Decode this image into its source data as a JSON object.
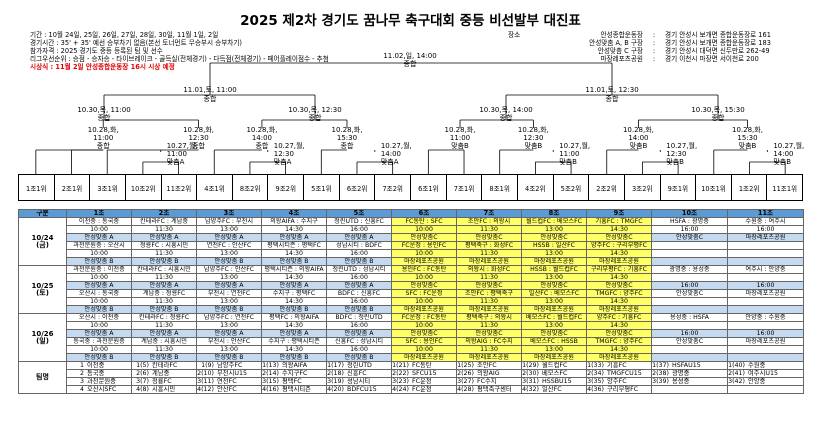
{
  "title": "2025 제2차 경기도 꿈나무 축구대회 중등 비선발부 대진표",
  "info": {
    "period": "기간 : 10월 24일, 25일, 26일, 27일, 28일, 30일, 11월 1일, 2일",
    "match_time": "경기시간 : 35' + 35' 예선 승부차기 없음(본선 토너먼트 무승부시 승부차기)",
    "participants": "참가자격 : 2025 경기도 중등 등록된 팀 및 선수",
    "ranking": "리그우선순위 : 승점 - 승자승 - 타이브레이크 - 골득실(전체경기) - 다득점(전체경기) - 페어플레이점수 - 추첨",
    "awards": "시상식 :    11월 2일 안성종합운동장 16시 시상 예정"
  },
  "venues": {
    "label": "장소",
    "rows": [
      {
        "name": "안성종합운동장",
        "addr": "경기 안성시 보개면 종합운동장로 161"
      },
      {
        "name": "안성맞춤 A, B 구장",
        "addr": "경기 안성시 보개면 종합운동장로 183"
      },
      {
        "name": "안성맞춤 C 구장",
        "addr": "경기 안성시 대덕면 신두만로 262-49"
      },
      {
        "name": "마장레포츠공원",
        "addr": "경기 이천시 마장면 서이천로 200"
      }
    ]
  },
  "bracket": {
    "final": [
      "11.02,일, 14:00",
      "종합"
    ],
    "semis": [
      [
        "11.01,토, 11:00",
        "종합"
      ],
      [
        "11.01,토, 12:30",
        "종합"
      ]
    ],
    "quarters": [
      [
        "10.30,목, 11:00",
        "종합"
      ],
      [
        "10.30,목, 12:30",
        "종합"
      ],
      [
        "10.30,목, 14:00",
        "종합"
      ],
      [
        "10.30,목, 15:30",
        "종합"
      ]
    ],
    "r16": [
      [
        "10.28,화,",
        "11:00",
        "종합"
      ],
      [
        "10.28,화,",
        "12:30",
        "종합"
      ],
      [
        "10.28,화,",
        "14:00",
        "종합"
      ],
      [
        "10.28,화,",
        "15:30",
        "종합"
      ],
      [
        "10.28,화,",
        "11:00",
        "맞춤B"
      ],
      [
        "10.28,화,",
        "12:30",
        "맞춤B"
      ],
      [
        "10.28,화,",
        "14:00",
        "맞춤B"
      ],
      [
        "10.28,화,",
        "15:30",
        "맞춤B"
      ]
    ],
    "r32": [
      [
        "10.27,월,",
        "11:00",
        "맞춤A"
      ],
      [
        "10.27,월,",
        "12:30",
        "맞춤A"
      ],
      [
        "10.27,월,",
        "14:00",
        "맞춤A"
      ],
      [
        "10.27,월,",
        "11:00",
        "맞춤B"
      ],
      [
        "10.27,월,",
        "12:30",
        "맞춤B"
      ],
      [
        "10.27,월,",
        "14:00",
        "맞춤B"
      ]
    ]
  },
  "seeds": [
    "1조1위",
    "2조1위",
    "3조1위",
    "10조2위",
    "11조2위",
    "4조1위",
    "8조2위",
    "9조2위",
    "5조1위",
    "6조2위",
    "7조2위",
    "6조1위",
    "7조1위",
    "8조1위",
    "4조2위",
    "5조2위",
    "2조2위",
    "3조2위",
    "9조1위",
    "10조1위",
    "1조2위",
    "11조1위"
  ],
  "schedule": {
    "headers": [
      "구분",
      "1조",
      "2조",
      "3조",
      "4조",
      "5조",
      "6조",
      "7조",
      "8조",
      "9조",
      "10조",
      "11조"
    ],
    "days": [
      {
        "date": "10/24",
        "dow": "(금)",
        "rows": [
          [
            "이천중 : 동국중",
            "칸테라FC : 계남중",
            "남양주FC : 부천시",
            "의왕AIFA : 수지구",
            "청린UTD : 신흥FC",
            "FC동탄 : SFC",
            "조안FC : 의왕시",
            "월드컵FC : 베모스FC",
            "기흥FC : TMGFC",
            "HSFA : 광명중",
            "수원중 : 여주시"
          ],
          [
            "10:00",
            "11:30",
            "13:00",
            "14:30",
            "16:00",
            "10:00",
            "11:30",
            "13:00",
            "14:30",
            "16:00",
            "16:00"
          ],
          [
            "안성맞춤 A",
            "안성맞춤 A",
            "안성맞춤 A",
            "안성맞춤 A",
            "안성맞춤 A",
            "안성맞춤C",
            "안성맞춤C",
            "안성맞춤C",
            "안성맞춤C",
            "안성맞춤C",
            "마장레포츠공원"
          ],
          [
            "과천문원중 : 오산시",
            "청룡FC : 시흥시민",
            "연천FC : 안산FC",
            "평택시티즌 : 평택FC",
            "성남시티 : BDFC",
            "FC운정 : 용인FC",
            "평택축구 : 화성FC",
            "HSSB : 일산FC",
            "양주FC : 구리부평FC",
            "",
            ""
          ],
          [
            "10:00",
            "11:30",
            "13:00",
            "14:30",
            "16:00",
            "10:00",
            "11:30",
            "13:00",
            "14:30",
            "",
            ""
          ],
          [
            "안성맞춤 B",
            "안성맞춤 B",
            "안성맞춤 B",
            "안성맞춤 B",
            "안성맞춤 B",
            "마장레포츠공원",
            "마장레포츠공원",
            "마장레포츠공원",
            "마장레포츠공원",
            "",
            ""
          ]
        ]
      },
      {
        "date": "10/25",
        "dow": "(토)",
        "rows": [
          [
            "과천문원중 : 이천중",
            "칸테라FC : 시흥시민",
            "남양주FC : 안산FC",
            "평택시티즌 : 의왕AIFA",
            "청린UTD : 성남시티",
            "용인FC : FC동탄",
            "의왕시 : 화성FC",
            "HSSB : 월드컵FC",
            "구리부평FC : 기흥FC",
            "광명중 : 용성중",
            "여주시 : 안양중"
          ],
          [
            "10:00",
            "11:30",
            "13:00",
            "14:30",
            "16:00",
            "10:00",
            "11:30",
            "13:00",
            "14:30",
            "",
            ""
          ],
          [
            "안성맞춤 A",
            "안성맞춤 A",
            "안성맞춤 A",
            "안성맞춤 A",
            "안성맞춤 A",
            "안성맞춤C",
            "안성맞춤C",
            "안성맞춤C",
            "안성맞춤C",
            "16:00",
            "16:00"
          ],
          [
            "오산시 : 동국중",
            "계남중 : 청룡FC",
            "부천시 : 연천FC",
            "수지구 : 평택FC",
            "BDFC : 신흥FC",
            "SFC : FC운정",
            "조안FC : 평택축구",
            "일산FC : 베모스FC",
            "TMGFC : 양주FC",
            "안성맞춤C",
            "마장레포츠공원"
          ],
          [
            "10:00",
            "11:30",
            "13:00",
            "14:30",
            "16:00",
            "10:00",
            "11:30",
            "13:00",
            "14:30",
            "",
            ""
          ],
          [
            "안성맞춤 B",
            "안성맞춤 B",
            "안성맞춤 B",
            "안성맞춤 B",
            "안성맞춤 B",
            "마장레포츠공원",
            "마장레포츠공원",
            "마장레포츠공원",
            "마장레포츠공원",
            "",
            ""
          ]
        ]
      },
      {
        "date": "10/26",
        "dow": "(일)",
        "rows": [
          [
            "오산시 : 이천중",
            "칸테라FC : 청룡FC",
            "남양주FC : 연천FC",
            "평택FC : 의왕AIFA",
            "BDFC : 청린UTD",
            "FC운정 : FC동탄",
            "평택축구 : 의왕시",
            "베모스FC : 월드컵FC",
            "양주FC : 기흥FC",
            "용성중 : HSFA",
            "안양중 : 수원중"
          ],
          [
            "10:00",
            "11:30",
            "13:00",
            "14:30",
            "16:00",
            "10:00",
            "11:30",
            "13:00",
            "14:30",
            "",
            ""
          ],
          [
            "안성맞춤 A",
            "안성맞춤 A",
            "안성맞춤 A",
            "안성맞춤 A",
            "안성맞춤 A",
            "안성맞춤C",
            "안성맞춤C",
            "안성맞춤C",
            "안성맞춤C",
            "16:00",
            "16:00"
          ],
          [
            "동국중 : 과천문원중",
            "계남중 : 시흥시민",
            "부천시 : 안산FC",
            "수지구 : 평택시티즌",
            "신흥FC : 성남시티",
            "SFC : 용인FC",
            "의왕AIG : FC수지",
            "베모스FC : HSSB",
            "TMGFC : 양주FC",
            "안성맞춤C",
            "마장레포츠공원"
          ],
          [
            "10:00",
            "11:30",
            "13:00",
            "14:30",
            "16:00",
            "10:00",
            "11:30",
            "13:00",
            "14:30",
            "",
            ""
          ],
          [
            "안성맞춤 B",
            "안성맞춤 B",
            "안성맞춤 B",
            "안성맞춤 B",
            "안성맞춤 B",
            "마장레포츠공원",
            "마장레포츠공원",
            "마장레포츠공원",
            "마장레포츠공원",
            "",
            ""
          ]
        ]
      }
    ],
    "roster_label": "팀명",
    "roster": [
      [
        [
          "1",
          "이천중"
        ],
        [
          "1(5)",
          "칸테라FC"
        ],
        [
          "1(9)",
          "남양주FC"
        ],
        [
          "1(13)",
          "의왕AIFA"
        ],
        [
          "1(17)",
          "청린UTD"
        ],
        [
          "1(21)",
          "FC동탄"
        ],
        [
          "1(25)",
          "조안FC"
        ],
        [
          "1(29)",
          "월드컵FC"
        ],
        [
          "1(33)",
          "기흥FC"
        ],
        [
          "1(37)",
          "HSFAU15"
        ],
        [
          "1(40)",
          "수원중"
        ]
      ],
      [
        [
          "2",
          "동국중"
        ],
        [
          "2(6)",
          "계남중"
        ],
        [
          "2(10)",
          "부천시U15"
        ],
        [
          "2(14)",
          "수지구FC"
        ],
        [
          "2(18)",
          "신흥FC"
        ],
        [
          "2(22)",
          "SFCU15"
        ],
        [
          "2(26)",
          "의왕AIG"
        ],
        [
          "2(30)",
          "베모스FC"
        ],
        [
          "2(34)",
          "TMGFCU15"
        ],
        [
          "2(38)",
          "광명중"
        ],
        [
          "2(41)",
          "여주시U15"
        ]
      ],
      [
        [
          "3",
          "과천문원중"
        ],
        [
          "3(7)",
          "청룡FC"
        ],
        [
          "3(11)",
          "연천FC"
        ],
        [
          "3(15)",
          "평택FC"
        ],
        [
          "3(19)",
          "성남시티"
        ],
        [
          "3(23)",
          "FC운정"
        ],
        [
          "3(27)",
          "FC수지"
        ],
        [
          "3(31)",
          "HSSBU15"
        ],
        [
          "3(35)",
          "양주FC"
        ],
        [
          "3(39)",
          "용성중"
        ],
        [
          "3(42)",
          "안양중"
        ]
      ],
      [
        [
          "4",
          "오산시SFC"
        ],
        [
          "4(8)",
          "시흥시민"
        ],
        [
          "4(12)",
          "안산FC"
        ],
        [
          "4(16)",
          "평택시티즌"
        ],
        [
          "4(20)",
          "BDFCU15"
        ],
        [
          "4(24)",
          "FC운정"
        ],
        [
          "4(28)",
          "평택축구센터"
        ],
        [
          "4(32)",
          "일산FC"
        ],
        [
          "4(36)",
          "구리부평FC"
        ],
        [
          "",
          ""
        ],
        [
          "",
          ""
        ]
      ]
    ]
  }
}
